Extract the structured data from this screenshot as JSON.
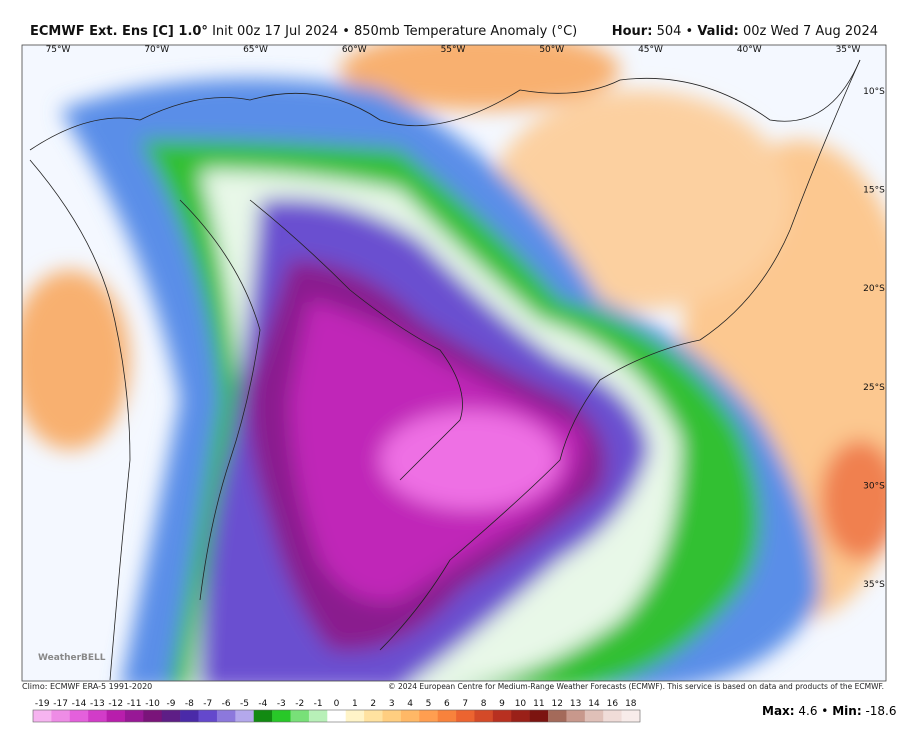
{
  "header": {
    "title": "ECMWF Ext. Ens [C] 1.0°",
    "subtitle": "Init 00z 17 Jul 2024 • 850mb Temperature Anomaly (°C)",
    "hour_label": "Hour:",
    "hour": "504 •",
    "valid_label": "Valid:",
    "valid": "00z Wed 7 Aug 2024"
  },
  "map": {
    "longitudes": [
      "75°W",
      "70°W",
      "65°W",
      "60°W",
      "55°W",
      "50°W",
      "45°W",
      "40°W",
      "35°W"
    ],
    "latitudes": [
      "10°S",
      "15°S",
      "20°S",
      "25°S",
      "30°S",
      "35°S"
    ],
    "watermark": "WeatherBELL"
  },
  "footer": {
    "climo": "Climo: ECMWF ERA-5 1991-2020",
    "copyright": "© 2024 European Centre for Medium-Range Weather Forecasts (ECMWF). This service is based on data and products of the ECMWF.",
    "max_label": "Max:",
    "max": "4.6 •",
    "min_label": "Min:",
    "min": "-18.6"
  },
  "colorbar": {
    "labels": [
      "-19",
      "-17",
      "-14",
      "-13",
      "-12",
      "-11",
      "-10",
      "-9",
      "-8",
      "-7",
      "-6",
      "-5",
      "-4",
      "-3",
      "-2",
      "-1",
      "0",
      "1",
      "2",
      "3",
      "4",
      "5",
      "6",
      "7",
      "8",
      "9",
      "10",
      "11",
      "12",
      "13",
      "14",
      "16",
      "18"
    ],
    "colors": [
      "#f6b4f0",
      "#ee8ce6",
      "#e460dc",
      "#d23cc8",
      "#b81eac",
      "#981896",
      "#7a147a",
      "#5e1e86",
      "#4a2aa8",
      "#6448cc",
      "#8c78dc",
      "#b4a8ec",
      "#128a12",
      "#28c828",
      "#78e078",
      "#b8f0b8",
      "#ffffff",
      "#fff4c8",
      "#ffe2a0",
      "#ffce80",
      "#ffb866",
      "#ff9e50",
      "#f8823c",
      "#ec6430",
      "#d44a28",
      "#b83020",
      "#9a2018",
      "#7c1410",
      "#a46a5a",
      "#c8988c",
      "#e0c0b8",
      "#f0dcd8",
      "#f8ecea"
    ]
  }
}
